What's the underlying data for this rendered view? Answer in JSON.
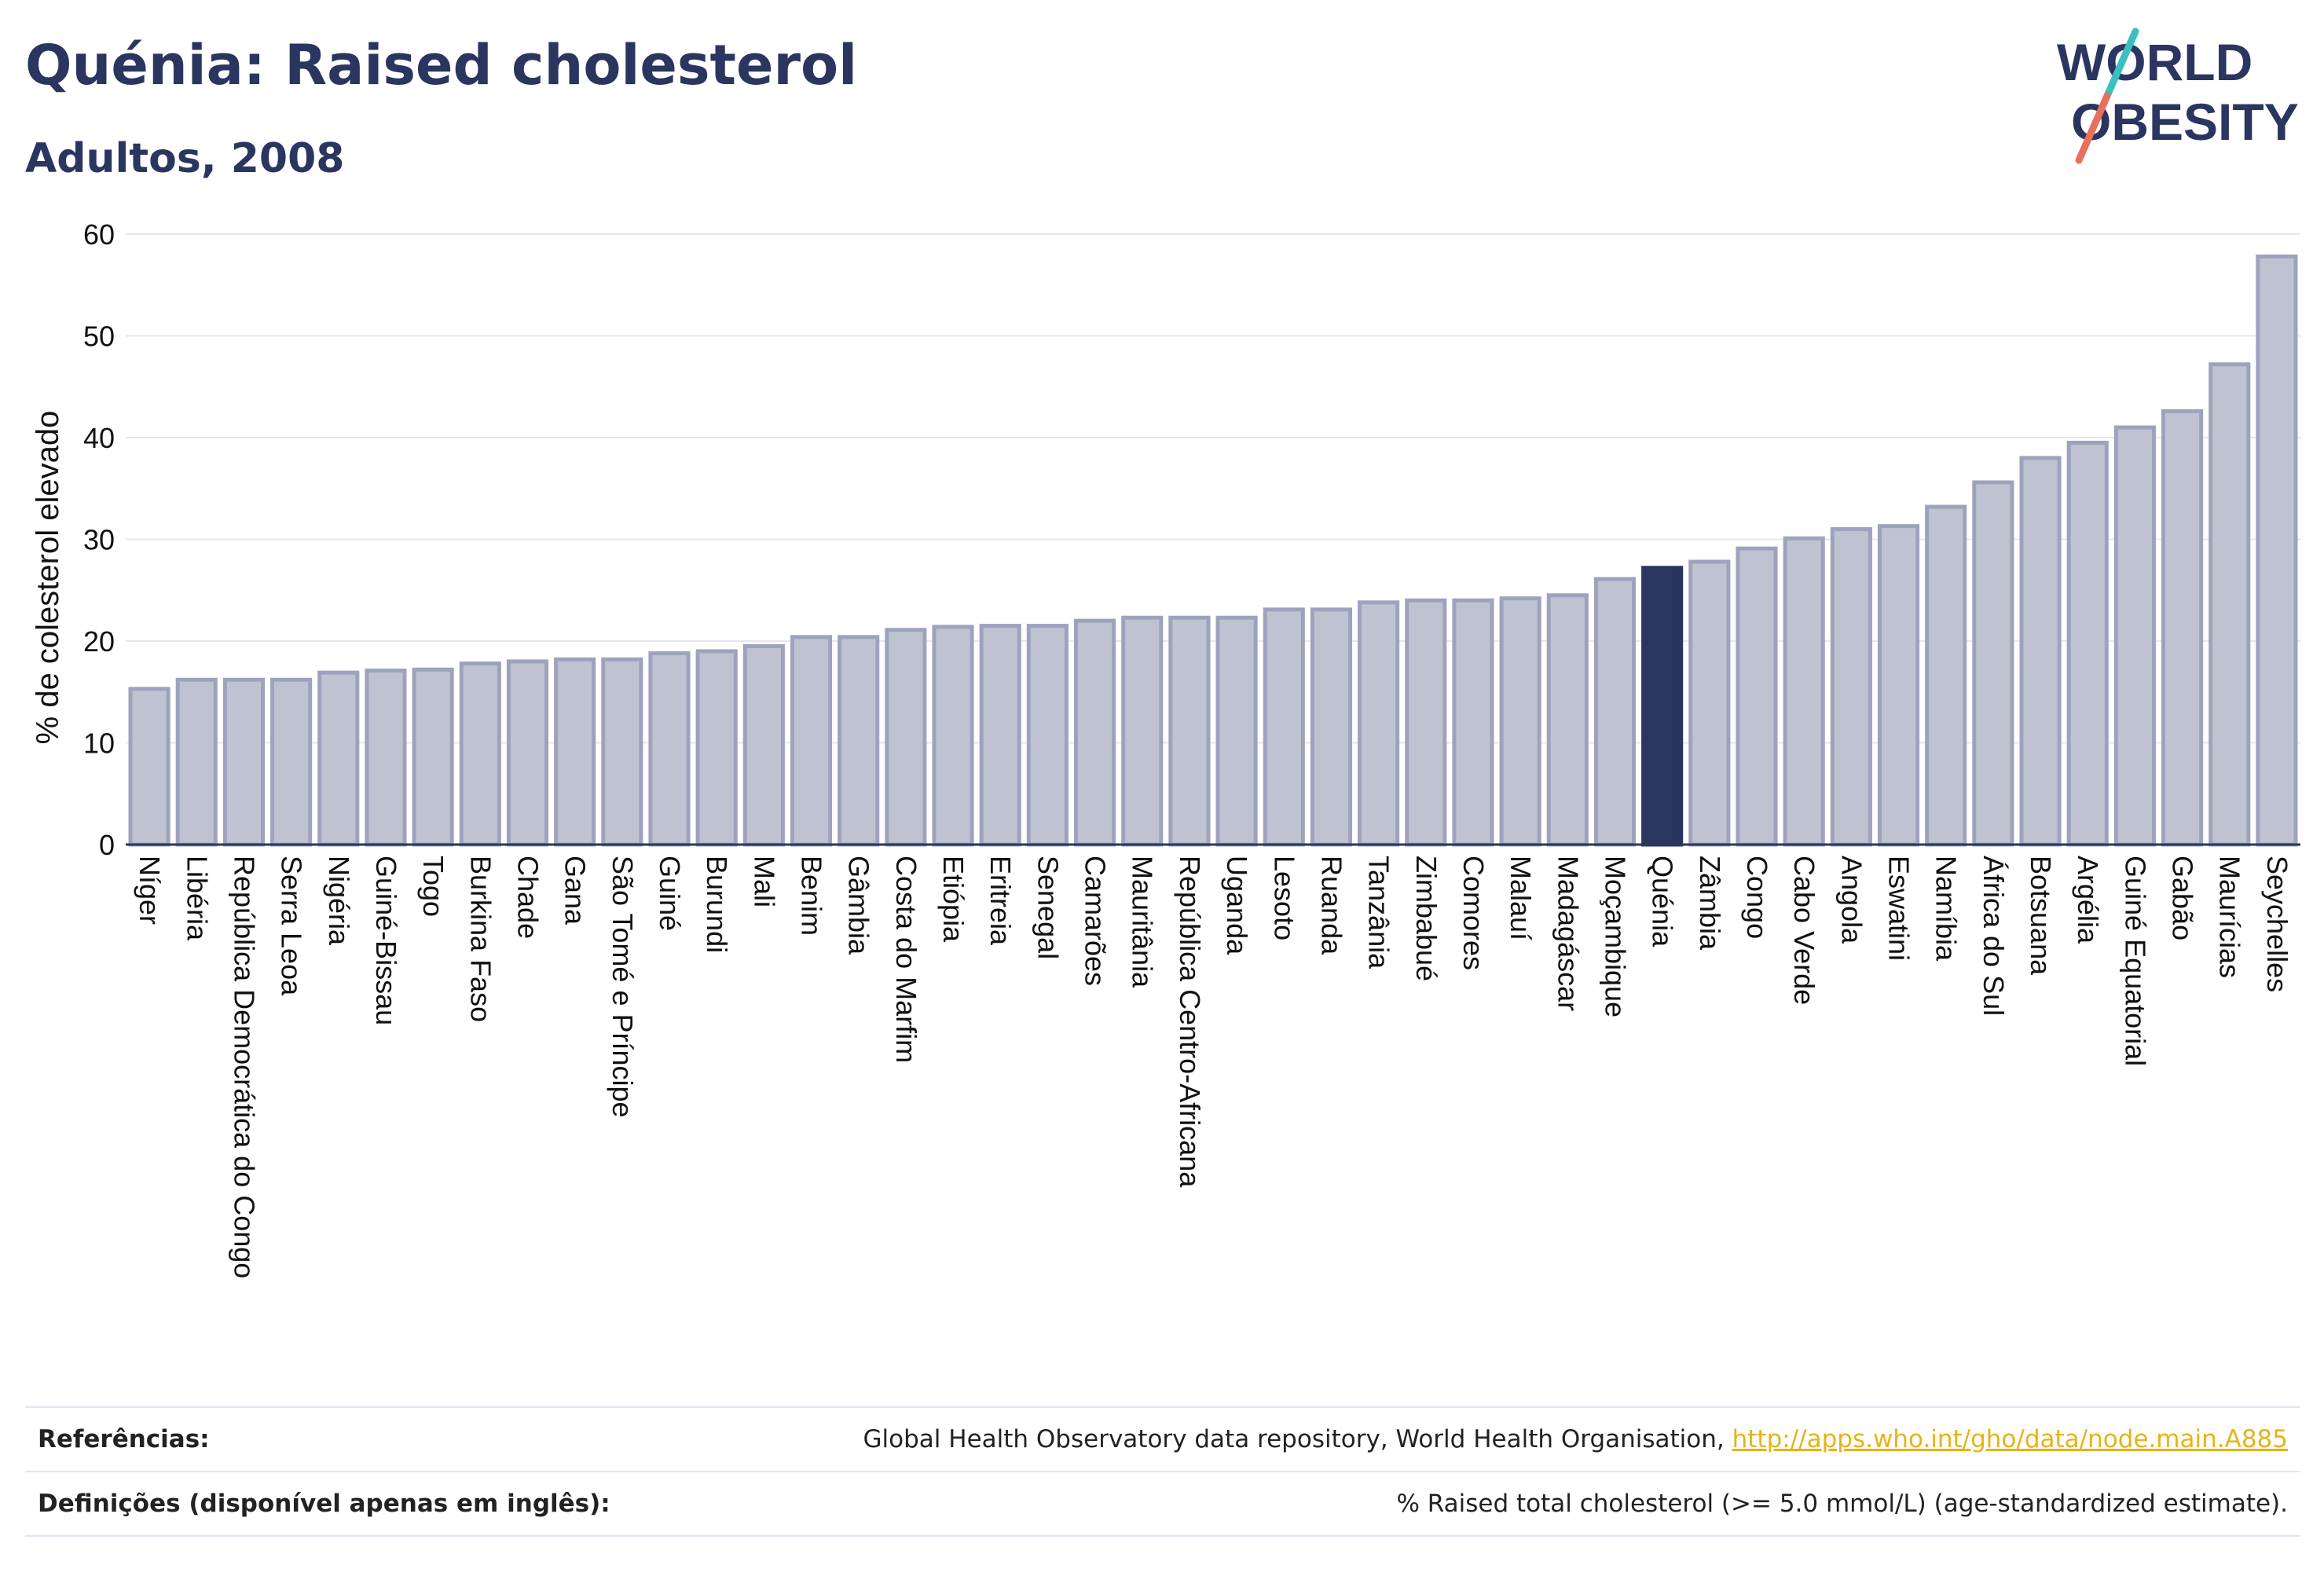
{
  "header": {
    "title": "Quénia: Raised cholesterol",
    "subtitle": "Adultos, 2008"
  },
  "logo": {
    "line1": "WORLD",
    "line2": "OBESITY",
    "text_color": "#2a3560",
    "slash_color_top": "#3bbfbf",
    "slash_color_bottom": "#e8705d"
  },
  "colors": {
    "bar_fill": "#bfc3d1",
    "bar_stroke": "#9da3bc",
    "highlight_fill": "#2a3560",
    "axis_text": "#111111",
    "grid": "#e5e7ee"
  },
  "chart_data": {
    "type": "bar",
    "ylabel": "% de colesterol elevado",
    "xlabel": "",
    "ylim": [
      0,
      60
    ],
    "yticks": [
      0,
      10,
      20,
      30,
      40,
      50,
      60
    ],
    "grid": true,
    "highlight": "Quénia",
    "categories": [
      "Níger",
      "Libéria",
      "República Democrática do Congo",
      "Serra Leoa",
      "Nigéria",
      "Guiné-Bissau",
      "Togo",
      "Burkina Faso",
      "Chade",
      "Gana",
      "São Tomé e Príncipe",
      "Guiné",
      "Burundi",
      "Mali",
      "Benim",
      "Gâmbia",
      "Costa do Marfim",
      "Etiópia",
      "Eritreia",
      "Senegal",
      "Camarões",
      "Mauritânia",
      "República Centro-Africana",
      "Uganda",
      "Lesoto",
      "Ruanda",
      "Tanzânia",
      "Zimbabué",
      "Comores",
      "Malauí",
      "Madagáscar",
      "Moçambique",
      "Quénia",
      "Zâmbia",
      "Congo",
      "Cabo Verde",
      "Angola",
      "Eswatini",
      "Namíbia",
      "África do Sul",
      "Botsuana",
      "Argélia",
      "Guiné Equatorial",
      "Gabão",
      "Maurícias",
      "Seychelles"
    ],
    "values": [
      15.3,
      16.2,
      16.2,
      16.2,
      16.9,
      17.1,
      17.2,
      17.8,
      18.0,
      18.2,
      18.2,
      18.8,
      19.0,
      19.5,
      20.4,
      20.4,
      21.1,
      21.4,
      21.5,
      21.5,
      22.0,
      22.3,
      22.3,
      22.3,
      23.1,
      23.1,
      23.8,
      24.0,
      24.0,
      24.2,
      24.5,
      26.1,
      27.2,
      27.8,
      29.1,
      30.1,
      31.0,
      31.3,
      33.2,
      35.6,
      38.0,
      39.5,
      41.0,
      42.6,
      47.2,
      57.8
    ]
  },
  "footer": {
    "references_label": "Referências:",
    "references_text": "Global Health Observatory data repository, World Health Organisation, ",
    "references_link": "http://apps.who.int/gho/data/node.main.A885",
    "definitions_label": "Definições (disponível apenas em inglês):",
    "definitions_text": "% Raised total cholesterol (>= 5.0 mmol/L) (age-standardized estimate)."
  }
}
